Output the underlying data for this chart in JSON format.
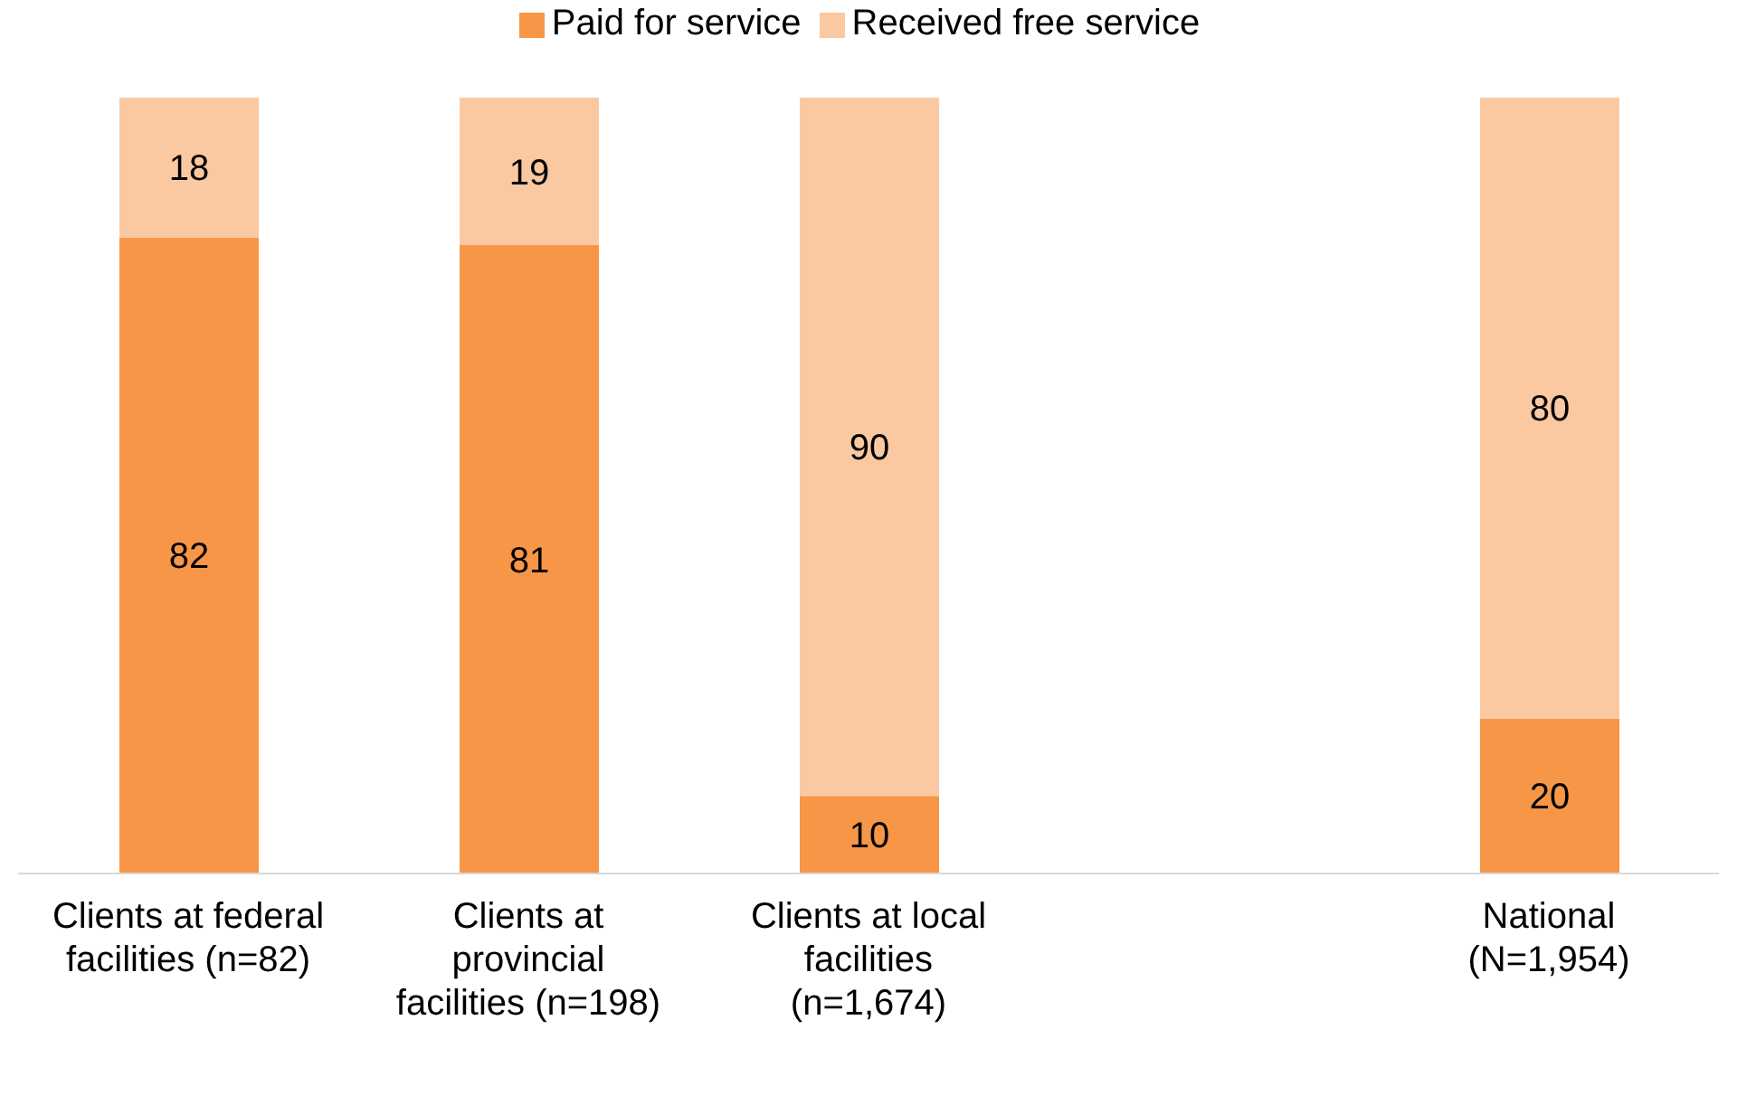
{
  "chart_data": {
    "type": "bar",
    "stacked": true,
    "data_labels": true,
    "legend": "top",
    "grid": false,
    "categories": [
      "Clients at federal facilities (n=82)",
      "Clients at provincial facilities (n=198)",
      "Clients at local facilities (n=1,674)",
      null,
      "National (N=1,954)"
    ],
    "series": [
      {
        "name": "Paid for service",
        "color": "#f79646",
        "values": [
          82,
          81,
          10,
          null,
          20
        ]
      },
      {
        "name": "Received free service",
        "color": "#fac9a1",
        "values": [
          18,
          19,
          90,
          null,
          80
        ]
      }
    ]
  }
}
